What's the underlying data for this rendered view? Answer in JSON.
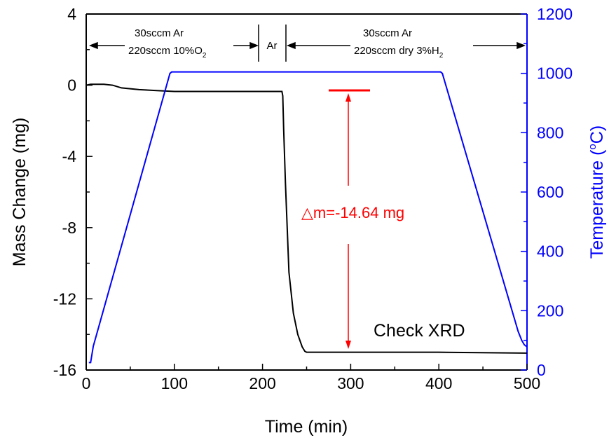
{
  "chart_data": {
    "type": "line",
    "xlabel": "Time (min)",
    "ylabel_left": "Mass Change (mg)",
    "ylabel_right_main": "Temperature (",
    "ylabel_right_deg": "o",
    "ylabel_right_unit": "C)",
    "xlim": [
      0,
      500
    ],
    "ylim_left": [
      -16,
      4
    ],
    "ylim_right": [
      0,
      1200
    ],
    "x_ticks": [
      "0",
      "100",
      "200",
      "300",
      "400",
      "500"
    ],
    "y_left_ticks": [
      "4",
      "0",
      "-4",
      "-8",
      "-12",
      "-16"
    ],
    "y_right_ticks": [
      "1200",
      "1000",
      "800",
      "600",
      "400",
      "200",
      "0"
    ],
    "series": [
      {
        "axis": "left",
        "color": "#000000",
        "x": [
          0,
          5,
          10,
          20,
          30,
          40,
          60,
          80,
          100,
          150,
          200,
          222,
          223,
          224,
          226,
          228,
          230,
          235,
          240,
          245,
          248,
          250,
          270,
          300,
          400,
          500
        ],
        "y": [
          0.0,
          0.05,
          0.05,
          0.05,
          0.0,
          -0.15,
          -0.25,
          -0.3,
          -0.35,
          -0.35,
          -0.35,
          -0.35,
          -0.6,
          -2.5,
          -5.5,
          -8.0,
          -10.5,
          -12.8,
          -14.0,
          -14.7,
          -14.95,
          -15.0,
          -15.0,
          -15.0,
          -15.0,
          -15.05
        ]
      },
      {
        "axis": "right",
        "color": "#0000ff",
        "x": [
          3,
          5,
          8,
          95,
          97,
          402,
          404,
          490,
          494,
          497,
          500
        ],
        "y": [
          25,
          25,
          80,
          1000,
          1005,
          1005,
          1000,
          130,
          100,
          85,
          78
        ]
      }
    ],
    "annotations": {
      "seg1_line1": "30sccm Ar",
      "seg1_line2": "220sccm 10%O",
      "seg1_sub": "2",
      "seg2": "Ar",
      "seg3_line1": "30sccm Ar",
      "seg3_line2": "220sccm dry 3%H",
      "seg3_sub": "2",
      "delta_m": "△m=-14.64 mg",
      "check_xrd": "Check XRD"
    },
    "colors": {
      "mass": "#000000",
      "temperature": "#0000ff",
      "annotation": "#ff0000"
    }
  }
}
